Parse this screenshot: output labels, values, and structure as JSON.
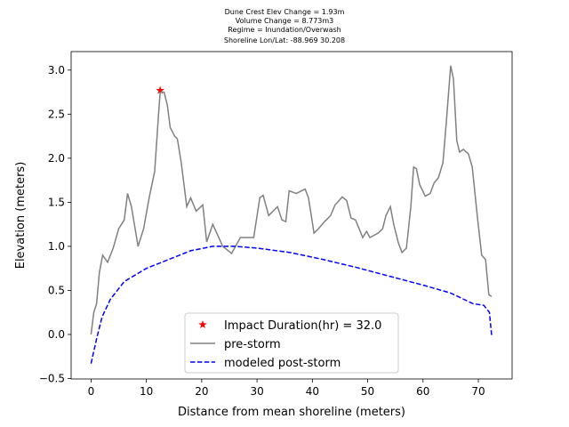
{
  "chart_data": {
    "type": "line",
    "title": [
      "Dune Crest Elev Change = 1.93m",
      "Volume Change = 8.773m3",
      "Regime = Inundation/Overwash",
      "Shoreline Lon/Lat: -88.969 30.208"
    ],
    "x_label": "Distance from mean shoreline (meters)",
    "y_label": "Elevation (meters)",
    "xlim": [
      -3.6,
      76.1
    ],
    "ylim": [
      -0.505,
      3.21
    ],
    "xticks": [
      0,
      10,
      20,
      30,
      40,
      50,
      60,
      70
    ],
    "yticks": [
      {
        "value": -0.5,
        "label": "−0.5"
      },
      {
        "value": 0.0,
        "label": "0.0"
      },
      {
        "value": 0.5,
        "label": "0.5"
      },
      {
        "value": 1.0,
        "label": "1.0"
      },
      {
        "value": 1.5,
        "label": "1.5"
      },
      {
        "value": 2.0,
        "label": "2.0"
      },
      {
        "value": 2.5,
        "label": "2.5"
      },
      {
        "value": 3.0,
        "label": "3.0"
      }
    ],
    "legend": "lower center",
    "series": [
      {
        "name": "Impact Duration(hr) = 32.0",
        "color": "#ff0000",
        "marker": "star",
        "x": [
          12.5
        ],
        "values": [
          2.77
        ]
      },
      {
        "name": "pre-storm",
        "color": "#808080",
        "linestyle": "solid",
        "x": [
          0,
          0.5,
          1,
          1.5,
          2.1,
          3,
          4,
          5,
          6,
          6.6,
          7.3,
          8.5,
          9.5,
          10.5,
          11.5,
          12.2,
          12.5,
          13.2,
          13.8,
          14.3,
          15.1,
          15.6,
          16.3,
          17.3,
          18,
          19,
          20.2,
          20.9,
          22,
          23.8,
          25.4,
          27,
          29.4,
          30.5,
          31.1,
          32.1,
          33.7,
          34.5,
          35.2,
          35.8,
          37.1,
          38.7,
          39.3,
          40.3,
          41.1,
          42.2,
          43.3,
          44.1,
          45.4,
          46.2,
          47,
          47.8,
          49.1,
          49.8,
          50.4,
          51.9,
          52.7,
          53.3,
          54.1,
          54.7,
          55.5,
          56.2,
          57,
          57.8,
          58.3,
          58.8,
          59.4,
          60.4,
          61.3,
          62,
          62.8,
          63.6,
          64.2,
          65,
          65.5,
          66.1,
          66.6,
          67.3,
          68.2,
          68.9,
          69.8,
          70.6,
          71.3,
          71.9,
          72.4
        ],
        "values": [
          0.0,
          0.25,
          0.35,
          0.7,
          0.9,
          0.82,
          0.98,
          1.2,
          1.3,
          1.6,
          1.45,
          1.0,
          1.2,
          1.55,
          1.85,
          2.5,
          2.75,
          2.75,
          2.6,
          2.35,
          2.25,
          2.22,
          1.95,
          1.45,
          1.55,
          1.4,
          1.47,
          1.05,
          1.25,
          1.0,
          0.92,
          1.1,
          1.1,
          1.55,
          1.58,
          1.35,
          1.45,
          1.3,
          1.28,
          1.63,
          1.6,
          1.65,
          1.55,
          1.15,
          1.2,
          1.28,
          1.35,
          1.47,
          1.56,
          1.52,
          1.32,
          1.3,
          1.1,
          1.17,
          1.1,
          1.15,
          1.2,
          1.35,
          1.45,
          1.25,
          1.05,
          0.93,
          0.98,
          1.45,
          1.9,
          1.88,
          1.7,
          1.57,
          1.6,
          1.72,
          1.78,
          1.95,
          2.4,
          3.05,
          2.9,
          2.2,
          2.07,
          2.1,
          2.05,
          1.9,
          1.35,
          0.9,
          0.85,
          0.45,
          0.43
        ]
      },
      {
        "name": "modeled post-storm",
        "color": "#0000ff",
        "linestyle": "dashed",
        "x": [
          0,
          1,
          2,
          3.5,
          6,
          10,
          14,
          18,
          22,
          26,
          30,
          36,
          42,
          48,
          54,
          60,
          65,
          69,
          71,
          72,
          72.4
        ],
        "values": [
          -0.33,
          -0.05,
          0.2,
          0.4,
          0.6,
          0.75,
          0.85,
          0.95,
          1.0,
          1.0,
          0.98,
          0.93,
          0.85,
          0.76,
          0.66,
          0.56,
          0.47,
          0.35,
          0.33,
          0.25,
          -0.01
        ]
      }
    ]
  }
}
